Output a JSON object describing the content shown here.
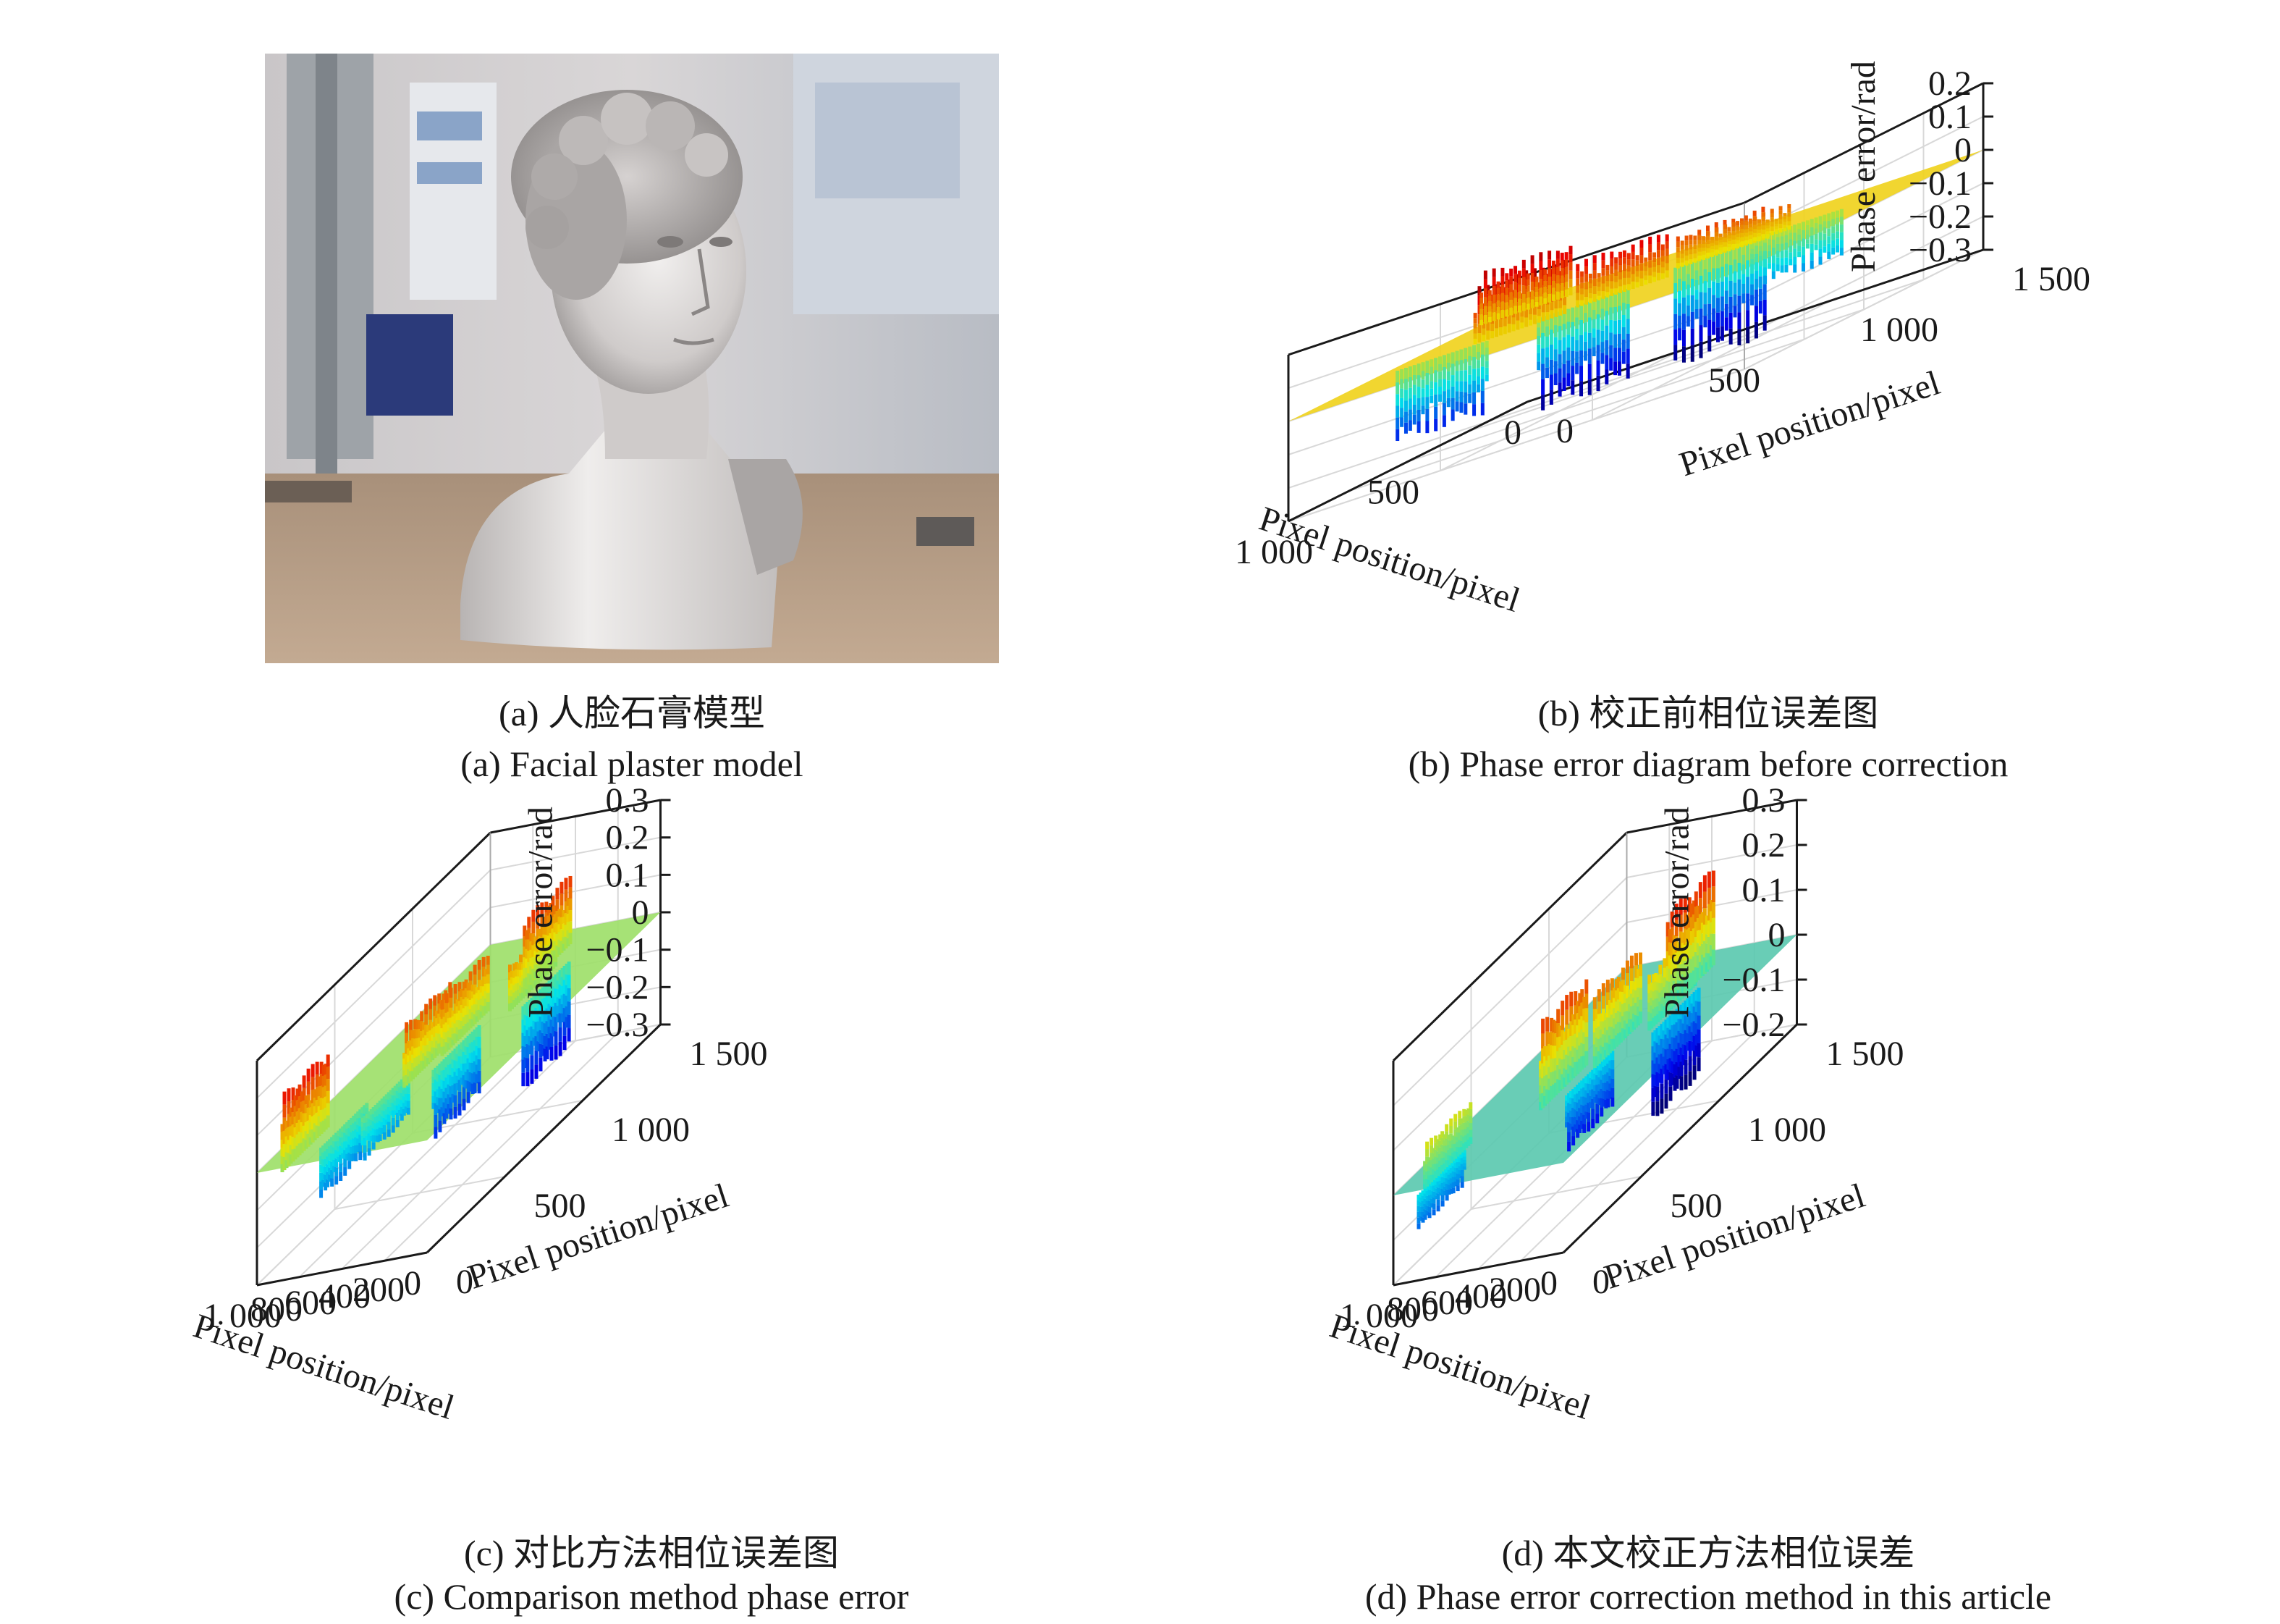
{
  "panels": [
    {
      "id": "a",
      "caption_cn": "(a) 人脸石膏模型",
      "caption_en": "(a) Facial plaster model"
    },
    {
      "id": "b",
      "caption_cn": "(b) 校正前相位误差图",
      "caption_en": "(b) Phase error diagram before correction"
    },
    {
      "id": "c",
      "caption_cn": "(c) 对比方法相位误差图",
      "caption_en": "(c) Comparison method phase error"
    },
    {
      "id": "d",
      "caption_cn": "(d) 本文校正方法相位误差",
      "caption_en": "(d) Phase error correction method in this article"
    }
  ],
  "chart_data": [
    {
      "panel": "b",
      "type": "surface",
      "zlabel": "Phase error/rad",
      "xlabel": "Pixel position/pixel",
      "ylabel": "Pixel position/pixel",
      "z_ticks": [
        "0.2",
        "0.1",
        "0",
        "−0.1",
        "−0.2",
        "−0.3"
      ],
      "z_values": [
        0.2,
        0.1,
        0,
        -0.1,
        -0.2,
        -0.3
      ],
      "zlim": [
        -0.3,
        0.2
      ],
      "left_axis_ticks": [
        "1 000",
        "500",
        "0"
      ],
      "right_axis_ticks": [
        "0",
        "500",
        "1 000",
        "1 500"
      ],
      "xlim": [
        0,
        1000
      ],
      "ylim": [
        0,
        1500
      ],
      "plane_color": "#f0d21e",
      "grid": true,
      "peaks": [
        {
          "x": 620,
          "y": 470,
          "z": 0.17
        },
        {
          "x": 560,
          "y": 760,
          "z": 0.14
        },
        {
          "x": 420,
          "y": 980,
          "z": 0.1
        },
        {
          "x": 200,
          "y": 160,
          "z": 0.16
        },
        {
          "x": 380,
          "y": 1020,
          "z": 0.08
        }
      ],
      "troughs": [
        {
          "x": 520,
          "y": 600,
          "z": -0.28
        },
        {
          "x": 380,
          "y": 940,
          "z": -0.3
        },
        {
          "x": 640,
          "y": 230,
          "z": -0.22
        },
        {
          "x": 300,
          "y": 1130,
          "z": -0.15
        }
      ]
    },
    {
      "panel": "c",
      "type": "surface",
      "zlabel": "Phase error/rad",
      "xlabel": "Pixel position/pixel",
      "ylabel": "Pixel position/pixel",
      "z_ticks": [
        "0.3",
        "0.2",
        "0.1",
        "0",
        "−0.1",
        "−0.2",
        "−0.3"
      ],
      "z_values": [
        0.3,
        0.2,
        0.1,
        0,
        -0.1,
        -0.2,
        -0.3
      ],
      "zlim": [
        -0.3,
        0.3
      ],
      "left_axis_ticks": [
        "1 000",
        "800",
        "600",
        "400",
        "200",
        "0"
      ],
      "right_axis_ticks": [
        "0",
        "500",
        "1 000",
        "1 500"
      ],
      "xlim": [
        0,
        1000
      ],
      "ylim": [
        0,
        1500
      ],
      "plane_color": "#9ee06a",
      "grid": true,
      "peaks": [
        {
          "x": 560,
          "y": 620,
          "z": 0.17
        },
        {
          "x": 520,
          "y": 820,
          "z": 0.16
        },
        {
          "x": 360,
          "y": 1080,
          "z": 0.13
        },
        {
          "x": 820,
          "y": 120,
          "z": 0.21
        },
        {
          "x": 420,
          "y": 1240,
          "z": 0.19
        }
      ],
      "troughs": [
        {
          "x": 480,
          "y": 720,
          "z": -0.19
        },
        {
          "x": 300,
          "y": 1100,
          "z": -0.23
        },
        {
          "x": 720,
          "y": 260,
          "z": -0.14
        },
        {
          "x": 640,
          "y": 440,
          "z": -0.12
        }
      ]
    },
    {
      "panel": "d",
      "type": "surface",
      "zlabel": "Phase error/rad",
      "xlabel": "Pixel position/pixel",
      "ylabel": "Pixel position/pixel",
      "z_ticks": [
        "0.3",
        "0.2",
        "0.1",
        "0",
        "−0.1",
        "−0.2"
      ],
      "z_values": [
        0.3,
        0.2,
        0.1,
        0,
        -0.1,
        -0.2
      ],
      "zlim": [
        -0.2,
        0.3
      ],
      "left_axis_ticks": [
        "1 000",
        "800",
        "600",
        "400",
        "200",
        "0"
      ],
      "right_axis_ticks": [
        "0",
        "500",
        "1 000",
        "1 500"
      ],
      "xlim": [
        0,
        1000
      ],
      "ylim": [
        0,
        1500
      ],
      "plane_color": "#5cc9b0",
      "grid": true,
      "peaks": [
        {
          "x": 560,
          "y": 620,
          "z": 0.2
        },
        {
          "x": 480,
          "y": 880,
          "z": 0.17
        },
        {
          "x": 360,
          "y": 1100,
          "z": 0.13
        },
        {
          "x": 820,
          "y": 160,
          "z": 0.1
        },
        {
          "x": 380,
          "y": 1240,
          "z": 0.22
        }
      ],
      "troughs": [
        {
          "x": 480,
          "y": 700,
          "z": -0.13
        },
        {
          "x": 320,
          "y": 1080,
          "z": -0.2
        },
        {
          "x": 820,
          "y": 120,
          "z": -0.08
        }
      ]
    }
  ]
}
